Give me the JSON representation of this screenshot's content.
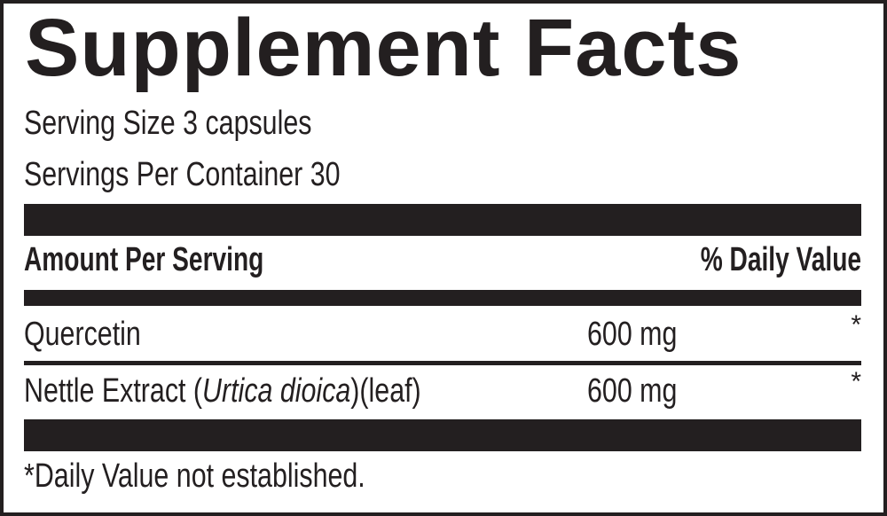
{
  "title": "Supplement Facts",
  "serving_size": "Serving Size 3 capsules",
  "servings_per_container": "Servings Per Container 30",
  "header": {
    "amount": "Amount Per Serving",
    "daily_value": "% Daily Value"
  },
  "rows": [
    {
      "name": "Quercetin",
      "name_italic": "",
      "name_suffix": "",
      "amount": "600 mg",
      "dv": "*"
    },
    {
      "name": "Nettle Extract (",
      "name_italic": "Urtica dioica",
      "name_suffix": ")(leaf)",
      "amount": "600 mg",
      "dv": "*"
    }
  ],
  "footnote": "*Daily Value not established."
}
